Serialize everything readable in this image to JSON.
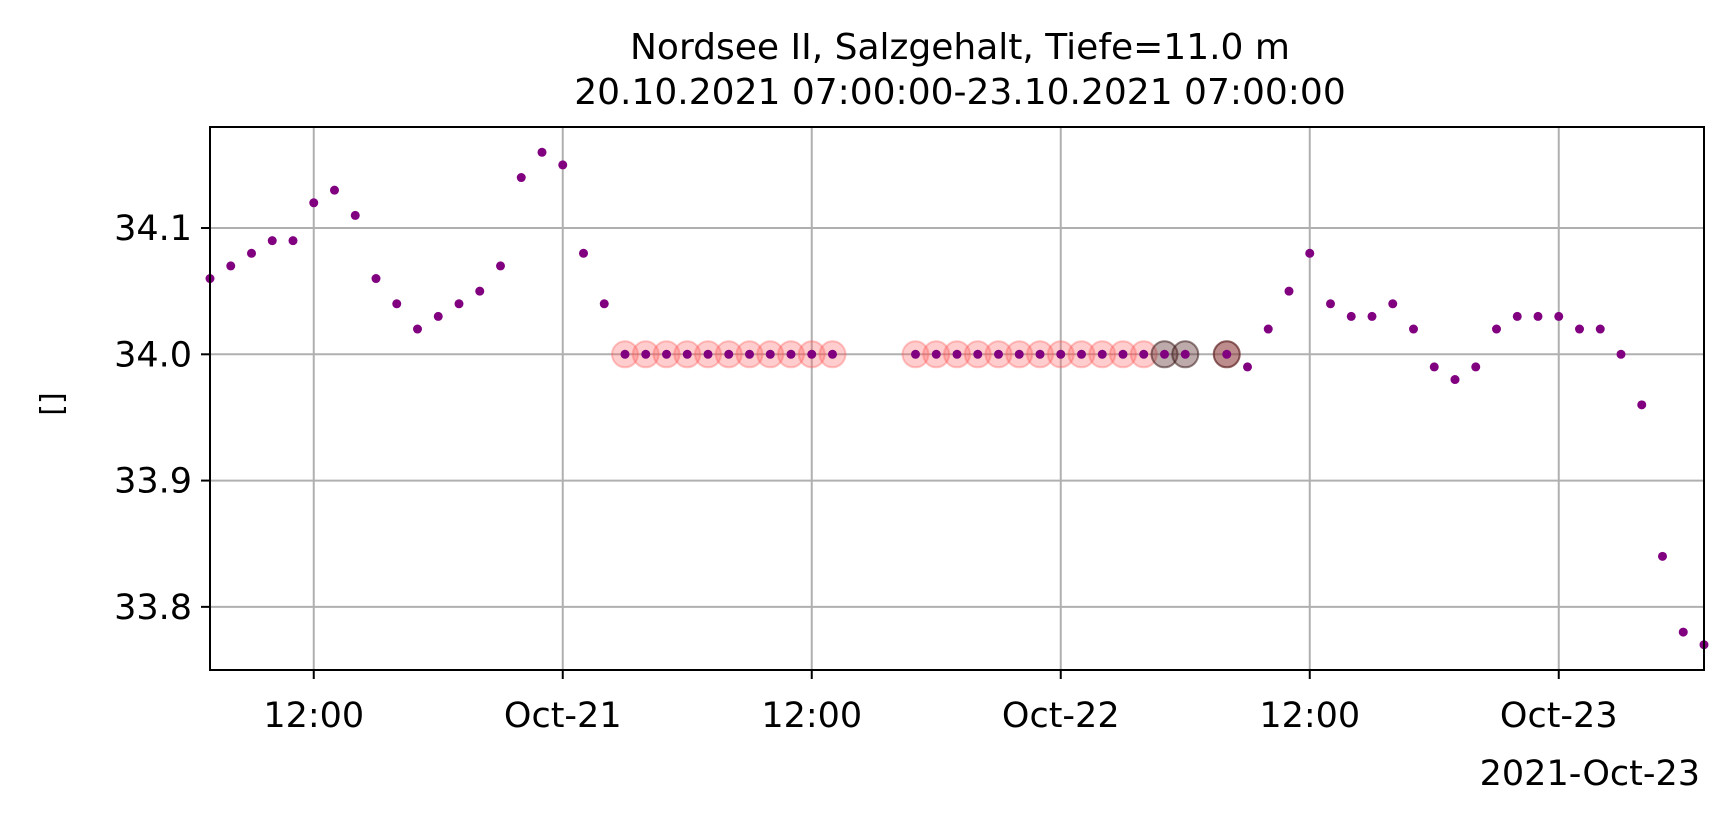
{
  "chart_data": {
    "type": "scatter",
    "title": "Nordsee II, Salzgehalt, Tiefe=11.0 m",
    "subtitle": "20.10.2021 07:00:00-23.10.2021 07:00:00",
    "xlabel": "",
    "ylabel": "[]",
    "x_offset_label": "2021-Oct-23",
    "xlim": [
      "2021-10-20 07:00",
      "2021-10-23 07:00"
    ],
    "ylim": [
      33.75,
      34.18
    ],
    "grid": true,
    "x_ticks": [
      {
        "x": "2021-10-20 12:00",
        "label": "12:00"
      },
      {
        "x": "2021-10-21 00:00",
        "label": "Oct-21"
      },
      {
        "x": "2021-10-21 12:00",
        "label": "12:00"
      },
      {
        "x": "2021-10-22 00:00",
        "label": "Oct-22"
      },
      {
        "x": "2021-10-22 12:00",
        "label": "12:00"
      },
      {
        "x": "2021-10-23 00:00",
        "label": "Oct-23"
      }
    ],
    "y_ticks": [
      {
        "y": 33.8,
        "label": "33.8"
      },
      {
        "y": 33.9,
        "label": "33.9"
      },
      {
        "y": 34.0,
        "label": "34.0"
      },
      {
        "y": 34.1,
        "label": "34.1"
      }
    ],
    "colors": {
      "points": "#800080",
      "flag_red": "#ff5a5a",
      "flag_dark": "#5a2a2a",
      "grid": "#b0b0b0"
    },
    "series": [
      {
        "marker": "dot",
        "x": [
          "2021-10-20 07:00",
          "2021-10-20 08:00",
          "2021-10-20 09:00",
          "2021-10-20 10:00",
          "2021-10-20 11:00",
          "2021-10-20 12:00",
          "2021-10-20 13:00",
          "2021-10-20 14:00",
          "2021-10-20 15:00",
          "2021-10-20 16:00",
          "2021-10-20 17:00",
          "2021-10-20 18:00",
          "2021-10-20 19:00",
          "2021-10-20 20:00",
          "2021-10-20 21:00",
          "2021-10-20 22:00",
          "2021-10-20 23:00",
          "2021-10-21 00:00",
          "2021-10-21 01:00",
          "2021-10-21 02:00",
          "2021-10-21 03:00",
          "2021-10-21 04:00",
          "2021-10-21 05:00",
          "2021-10-21 06:00",
          "2021-10-21 07:00",
          "2021-10-21 08:00",
          "2021-10-21 09:00",
          "2021-10-21 10:00",
          "2021-10-21 11:00",
          "2021-10-21 12:00",
          "2021-10-21 13:00",
          "2021-10-21 17:00",
          "2021-10-21 18:00",
          "2021-10-21 19:00",
          "2021-10-21 20:00",
          "2021-10-21 21:00",
          "2021-10-21 22:00",
          "2021-10-21 23:00",
          "2021-10-22 00:00",
          "2021-10-22 01:00",
          "2021-10-22 02:00",
          "2021-10-22 03:00",
          "2021-10-22 04:00",
          "2021-10-22 05:00",
          "2021-10-22 06:00",
          "2021-10-22 08:00",
          "2021-10-22 09:00",
          "2021-10-22 10:00",
          "2021-10-22 11:00",
          "2021-10-22 12:00",
          "2021-10-22 13:00",
          "2021-10-22 14:00",
          "2021-10-22 15:00",
          "2021-10-22 16:00",
          "2021-10-22 17:00",
          "2021-10-22 18:00",
          "2021-10-22 19:00",
          "2021-10-22 20:00",
          "2021-10-22 21:00",
          "2021-10-22 22:00",
          "2021-10-22 23:00",
          "2021-10-23 00:00",
          "2021-10-23 01:00",
          "2021-10-23 02:00",
          "2021-10-23 03:00",
          "2021-10-23 04:00",
          "2021-10-23 05:00",
          "2021-10-23 06:00",
          "2021-10-23 07:00"
        ],
        "y": [
          34.06,
          34.07,
          34.08,
          34.09,
          34.09,
          34.12,
          34.13,
          34.11,
          34.06,
          34.04,
          34.02,
          34.03,
          34.04,
          34.05,
          34.07,
          34.14,
          34.16,
          34.15,
          34.08,
          34.04,
          34.0,
          34.0,
          34.0,
          34.0,
          34.0,
          34.0,
          34.0,
          34.0,
          34.0,
          34.0,
          34.0,
          34.0,
          34.0,
          34.0,
          34.0,
          34.0,
          34.0,
          34.0,
          34.0,
          34.0,
          34.0,
          34.0,
          34.0,
          34.0,
          34.0,
          34.0,
          33.99,
          34.02,
          34.05,
          34.08,
          34.04,
          34.03,
          34.03,
          34.04,
          34.02,
          33.99,
          33.98,
          33.99,
          34.02,
          34.03,
          34.03,
          34.03,
          34.02,
          34.02,
          34.0,
          33.96,
          33.84,
          33.78,
          33.77
        ]
      },
      {
        "marker": "flag-red",
        "x": [
          "2021-10-21 03:00",
          "2021-10-21 04:00",
          "2021-10-21 05:00",
          "2021-10-21 06:00",
          "2021-10-21 07:00",
          "2021-10-21 08:00",
          "2021-10-21 09:00",
          "2021-10-21 10:00",
          "2021-10-21 11:00",
          "2021-10-21 12:00",
          "2021-10-21 13:00",
          "2021-10-21 17:00",
          "2021-10-21 18:00",
          "2021-10-21 19:00",
          "2021-10-21 20:00",
          "2021-10-21 21:00",
          "2021-10-21 22:00",
          "2021-10-21 23:00",
          "2021-10-22 00:00",
          "2021-10-22 01:00",
          "2021-10-22 02:00",
          "2021-10-22 03:00",
          "2021-10-22 04:00",
          "2021-10-22 08:00"
        ],
        "y": [
          34.0,
          34.0,
          34.0,
          34.0,
          34.0,
          34.0,
          34.0,
          34.0,
          34.0,
          34.0,
          34.0,
          34.0,
          34.0,
          34.0,
          34.0,
          34.0,
          34.0,
          34.0,
          34.0,
          34.0,
          34.0,
          34.0,
          34.0,
          34.0
        ]
      },
      {
        "marker": "flag-dark",
        "x": [
          "2021-10-22 05:00",
          "2021-10-22 06:00",
          "2021-10-22 08:00"
        ],
        "y": [
          34.0,
          34.0,
          34.0
        ]
      }
    ]
  }
}
